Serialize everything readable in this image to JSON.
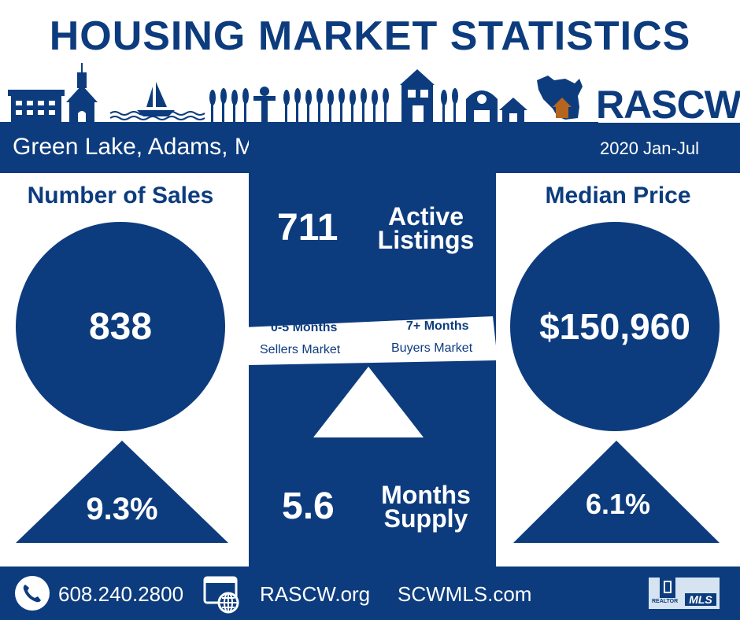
{
  "title": "HOUSING MARKET STATISTICS",
  "logo_text": "RASCW",
  "region": "Green Lake, Adams, Marquette & Waushara",
  "period": "2020 Jan-Jul",
  "sales": {
    "heading": "Number of Sales",
    "value": "838",
    "change": "9.3%"
  },
  "median_price": {
    "heading": "Median Price",
    "value": "$150,960",
    "change": "6.1%"
  },
  "active_listings": {
    "value": "711",
    "label_line1": "Active",
    "label_line2": "Listings"
  },
  "scale": {
    "left_title": "0-5 Months",
    "left_label": "Sellers Market",
    "right_title": "7+ Months",
    "right_label": "Buyers Market"
  },
  "months_supply": {
    "value": "5.6",
    "label_line1": "Months",
    "label_line2": "Supply"
  },
  "footer": {
    "phone": "608.240.2800",
    "site1": "RASCW.org",
    "site2": "SCWMLS.com",
    "mls_logo_text": "MLS",
    "realtor_text": "REALTOR"
  },
  "colors": {
    "navy": "#0d3c7e",
    "white": "#ffffff",
    "house_roof": "#b5651d"
  },
  "icons": [
    "phone-icon",
    "web-globe-icon",
    "realtor-mls-logo",
    "wisconsin-map-icon",
    "house-icon"
  ]
}
